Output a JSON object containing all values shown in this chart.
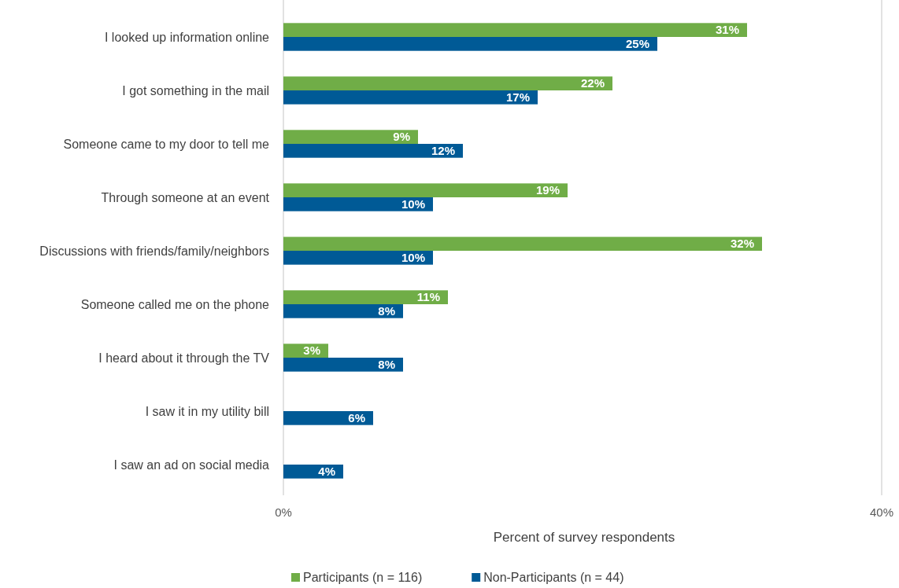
{
  "chart_data": {
    "type": "bar",
    "orientation": "horizontal",
    "xlabel": "Percent of survey respondents",
    "categories": [
      "I looked up information online",
      "I got something in the mail",
      "Someone came to my door to tell me",
      "Through someone at an event",
      "Discussions with friends/family/neighbors",
      "Someone called me on the phone",
      "I heard about it through the TV",
      "I saw it in my utility bill",
      "I saw an ad on social media"
    ],
    "series": [
      {
        "name": "Participants (n = 116)",
        "color": "#70ad47",
        "values": [
          31,
          22,
          9,
          19,
          32,
          11,
          3,
          null,
          null
        ],
        "value_labels": [
          "31%",
          "22%",
          "9%",
          "19%",
          "32%",
          "11%",
          "3%",
          null,
          null
        ]
      },
      {
        "name": "Non-Participants (n = 44)",
        "color": "#005a96",
        "values": [
          25,
          17,
          12,
          10,
          10,
          8,
          8,
          6,
          4
        ],
        "value_labels": [
          "25%",
          "17%",
          "12%",
          "10%",
          "10%",
          "8%",
          "8%",
          "6%",
          "4%"
        ]
      }
    ],
    "xlim": [
      0,
      40
    ],
    "xticks": [
      {
        "value": 0,
        "label": "0%"
      },
      {
        "value": 40,
        "label": "40%"
      }
    ],
    "legend": "bottom"
  }
}
